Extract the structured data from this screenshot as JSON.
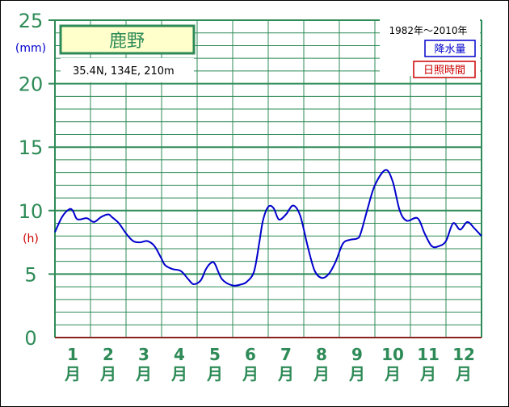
{
  "chart_data": {
    "type": "line",
    "title": "鹿野",
    "location": "35.4N,  134E,  210m",
    "period": "1982年〜2010年",
    "legend": [
      {
        "label": "降水量",
        "color": "#0000cc"
      },
      {
        "label": "日照時間",
        "color": "#cc0000"
      }
    ],
    "y_unit_top": "(mm)",
    "y_unit_bottom": "(h)",
    "y_ticks": [
      "0",
      "5",
      "10",
      "15",
      "20",
      "25"
    ],
    "ylim": [
      0,
      25
    ],
    "month_numbers": [
      "1",
      "2",
      "3",
      "4",
      "5",
      "6",
      "7",
      "8",
      "9",
      "10",
      "11",
      "12"
    ],
    "month_char": "月",
    "xlim": [
      0.5,
      12.5
    ],
    "series": [
      {
        "color": "#0000cc",
        "x": [
          0.5,
          0.7,
          0.9,
          1.0,
          1.1,
          1.2,
          1.4,
          1.6,
          1.8,
          2.0,
          2.1,
          2.3,
          2.5,
          2.7,
          2.9,
          3.1,
          3.3,
          3.5,
          3.6,
          3.8,
          4.0,
          4.1,
          4.25,
          4.4,
          4.6,
          4.75,
          4.9,
          5.0,
          5.2,
          5.5,
          5.75,
          5.9,
          6.1,
          6.25,
          6.35,
          6.5,
          6.65,
          6.8,
          7.0,
          7.2,
          7.4,
          7.6,
          7.8,
          8.0,
          8.2,
          8.4,
          8.6,
          8.8,
          9.0,
          9.1,
          9.3,
          9.5,
          9.8,
          10.0,
          10.2,
          10.4,
          10.7,
          10.9,
          11.1,
          11.3,
          11.5,
          11.7,
          11.9,
          12.1,
          12.3,
          12.5
        ],
        "values": [
          8.3,
          9.5,
          10.1,
          10.0,
          9.4,
          9.3,
          9.4,
          9.1,
          9.5,
          9.7,
          9.5,
          9.0,
          8.2,
          7.6,
          7.5,
          7.6,
          7.2,
          6.2,
          5.7,
          5.4,
          5.3,
          5.1,
          4.6,
          4.2,
          4.5,
          5.4,
          5.9,
          5.8,
          4.6,
          4.1,
          4.2,
          4.4,
          5.2,
          7.5,
          9.2,
          10.3,
          10.2,
          9.3,
          9.7,
          10.4,
          9.6,
          7.3,
          5.3,
          4.7,
          5.0,
          6.0,
          7.4,
          7.7,
          7.8,
          8.2,
          10.2,
          12.0,
          13.2,
          12.3,
          10.0,
          9.2,
          9.4,
          8.2,
          7.2,
          7.2,
          7.6,
          9.0,
          8.5,
          9.1,
          8.6,
          8.0
        ]
      }
    ]
  }
}
